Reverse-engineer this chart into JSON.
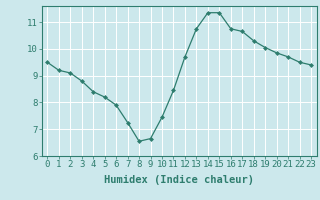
{
  "x": [
    0,
    1,
    2,
    3,
    4,
    5,
    6,
    7,
    8,
    9,
    10,
    11,
    12,
    13,
    14,
    15,
    16,
    17,
    18,
    19,
    20,
    21,
    22,
    23
  ],
  "y": [
    9.5,
    9.2,
    9.1,
    8.8,
    8.4,
    8.2,
    7.9,
    7.25,
    6.55,
    6.65,
    7.45,
    8.45,
    9.7,
    10.75,
    11.35,
    11.35,
    10.75,
    10.65,
    10.3,
    10.05,
    9.85,
    9.7,
    9.5,
    9.4
  ],
  "bg_color": "#cce8ec",
  "line_color": "#2e7d6e",
  "marker_color": "#2e7d6e",
  "grid_color": "#ffffff",
  "xlabel": "Humidex (Indice chaleur)",
  "xlim": [
    -0.5,
    23.5
  ],
  "ylim": [
    6,
    11.6
  ],
  "yticks": [
    6,
    7,
    8,
    9,
    10,
    11
  ],
  "xticks": [
    0,
    1,
    2,
    3,
    4,
    5,
    6,
    7,
    8,
    9,
    10,
    11,
    12,
    13,
    14,
    15,
    16,
    17,
    18,
    19,
    20,
    21,
    22,
    23
  ],
  "fig_bg_color": "#cce8ec",
  "font_size_label": 7.5,
  "font_size_tick": 6.5
}
